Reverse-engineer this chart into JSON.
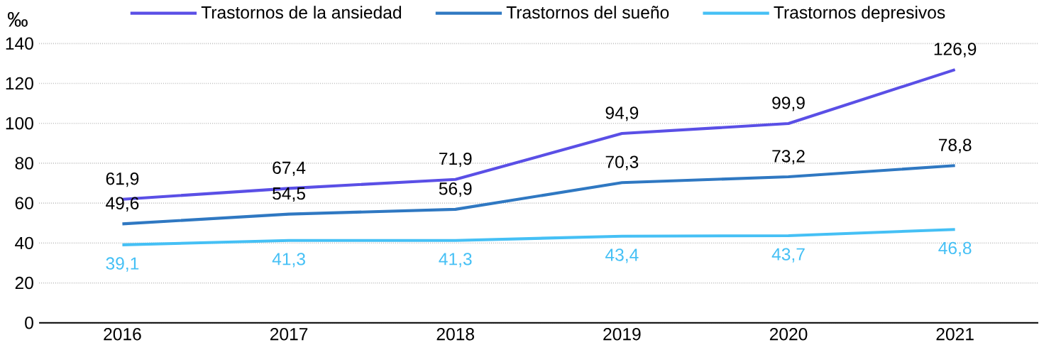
{
  "chart_data": {
    "type": "line",
    "ylabel": "‰",
    "categories": [
      "2016",
      "2017",
      "2018",
      "2019",
      "2020",
      "2021"
    ],
    "series": [
      {
        "name": "Trastornos de la ansiedad",
        "color": "#5a4fe6",
        "values": [
          61.9,
          67.4,
          71.9,
          94.9,
          99.9,
          126.9
        ],
        "value_labels": [
          "61,9",
          "67,4",
          "71,9",
          "94,9",
          "99,9",
          "126,9"
        ]
      },
      {
        "name": "Trastornos del sueño",
        "color": "#2f78c2",
        "values": [
          49.6,
          54.5,
          56.9,
          70.3,
          73.2,
          78.8
        ],
        "value_labels": [
          "49,6",
          "54,5",
          "56,9",
          "70,3",
          "73,2",
          "78,8"
        ]
      },
      {
        "name": "Trastornos depresivos",
        "color": "#45c0f5",
        "values": [
          39.1,
          41.3,
          41.3,
          43.4,
          43.7,
          46.8
        ],
        "value_labels": [
          "39,1",
          "41,3",
          "41,3",
          "43,4",
          "43,7",
          "46,8"
        ]
      }
    ],
    "ylim": [
      0,
      140
    ],
    "yticks": [
      0,
      20,
      40,
      60,
      80,
      100,
      120,
      140
    ],
    "grid": "y",
    "legend": "top",
    "marker": "none",
    "line_style": "solid"
  }
}
